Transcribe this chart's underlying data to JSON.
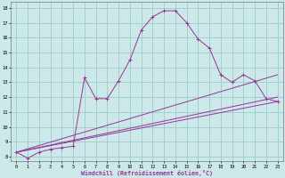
{
  "xlabel": "Windchill (Refroidissement éolien,°C)",
  "bg_color": "#cce8e8",
  "line_color": "#993399",
  "grid_color": "#99cccc",
  "x_ticks": [
    0,
    1,
    2,
    3,
    4,
    5,
    6,
    7,
    8,
    9,
    10,
    11,
    12,
    13,
    14,
    15,
    16,
    17,
    18,
    19,
    20,
    21,
    22,
    23
  ],
  "y_ticks": [
    8,
    9,
    10,
    11,
    12,
    13,
    14,
    15,
    16,
    17,
    18
  ],
  "ylim": [
    7.7,
    18.4
  ],
  "xlim": [
    -0.5,
    23.5
  ],
  "curve1_x": [
    0,
    1,
    2,
    3,
    4,
    5,
    6,
    7,
    8,
    9,
    10,
    11,
    12,
    13,
    14,
    15,
    16,
    17,
    18,
    19,
    20,
    21,
    22,
    23
  ],
  "curve1_y": [
    8.3,
    7.9,
    8.3,
    8.5,
    8.6,
    8.7,
    13.3,
    11.9,
    11.9,
    13.1,
    14.5,
    16.5,
    17.4,
    17.8,
    17.8,
    17.0,
    15.9,
    15.3,
    13.5,
    13.0,
    13.5,
    13.1,
    11.9,
    11.7
  ],
  "curve2_x": [
    0,
    23
  ],
  "curve2_y": [
    8.3,
    11.7
  ],
  "curve3_x": [
    0,
    23
  ],
  "curve3_y": [
    8.3,
    12.0
  ],
  "curve4_x": [
    0,
    23
  ],
  "curve4_y": [
    8.3,
    13.5
  ]
}
